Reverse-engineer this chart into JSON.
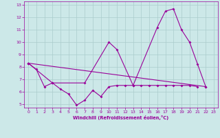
{
  "xlabel": "Windchill (Refroidissement éolien,°C)",
  "xlim": [
    -0.5,
    23.5
  ],
  "ylim": [
    4.7,
    13.3
  ],
  "xticks": [
    0,
    1,
    2,
    3,
    4,
    5,
    6,
    7,
    8,
    9,
    10,
    11,
    12,
    13,
    14,
    15,
    16,
    17,
    18,
    19,
    20,
    21,
    22,
    23
  ],
  "yticks": [
    5,
    6,
    7,
    8,
    9,
    10,
    11,
    12,
    13
  ],
  "background_color": "#cce8e8",
  "line_color": "#990099",
  "grid_color": "#aacccc",
  "line1_x": [
    0,
    1,
    2,
    3,
    4,
    5,
    6,
    7,
    8,
    9,
    10,
    11,
    12,
    13,
    14,
    15,
    16,
    17,
    18,
    19,
    20,
    21
  ],
  "line1_y": [
    8.3,
    7.8,
    6.4,
    6.7,
    6.2,
    5.8,
    4.9,
    5.3,
    6.1,
    5.6,
    6.4,
    6.5,
    6.5,
    6.5,
    6.5,
    6.5,
    6.5,
    6.5,
    6.5,
    6.5,
    6.5,
    6.4
  ],
  "line2_x": [
    0,
    3,
    7,
    10,
    11,
    13,
    16,
    17,
    18,
    19,
    20,
    21,
    22
  ],
  "line2_y": [
    8.3,
    6.7,
    6.7,
    10.0,
    9.4,
    6.5,
    11.2,
    12.5,
    12.7,
    11.0,
    10.0,
    8.2,
    6.4
  ],
  "line3_x": [
    0,
    22
  ],
  "line3_y": [
    8.3,
    6.4
  ]
}
